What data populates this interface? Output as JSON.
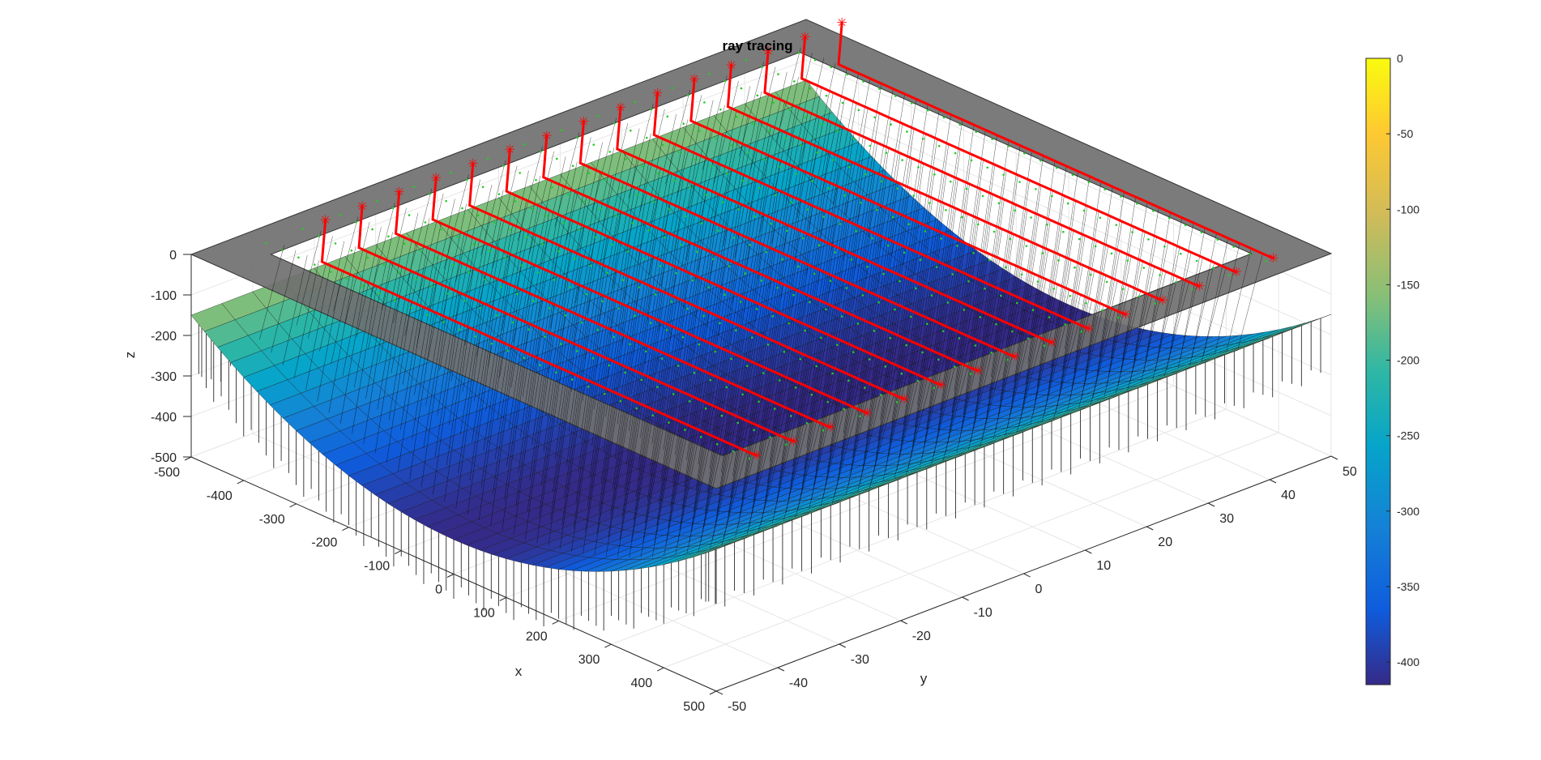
{
  "chart_data": {
    "type": "surface3d",
    "title": "ray tracing",
    "xlabel": "x",
    "ylabel": "y",
    "zlabel": "z",
    "xlim": [
      -500,
      500
    ],
    "ylim": [
      -50,
      50
    ],
    "zlim": [
      -500,
      0
    ],
    "x_ticks": [
      "-500",
      "-400",
      "-300",
      "-200",
      "-100",
      "0",
      "100",
      "200",
      "300",
      "400",
      "500"
    ],
    "y_ticks": [
      "-50",
      "-40",
      "-30",
      "-20",
      "-10",
      "0",
      "10",
      "20",
      "30",
      "40",
      "50"
    ],
    "z_ticks": [
      "0",
      "-100",
      "-200",
      "-300",
      "-400",
      "-500"
    ],
    "surface": {
      "description_of_shape": "parabolic trough, depth varies along x",
      "z_min": -415,
      "z_max": -150,
      "vertex_x": 0
    },
    "colorbar": {
      "colormap": "parula",
      "range": [
        -415,
        0
      ],
      "ticks": [
        "0",
        "-50",
        "-100",
        "-150",
        "-200",
        "-250",
        "-300",
        "-350",
        "-400"
      ]
    },
    "series": [
      {
        "name": "",
        "kind": "ray_endpoints",
        "marker": "asterisk",
        "color": "#ff0000",
        "z": 0
      },
      {
        "name": "",
        "kind": "reference_curve",
        "marker": "dot",
        "color": "#22cc22",
        "z": 0
      },
      {
        "name": "",
        "kind": "vertical_rays",
        "color": "#000000"
      }
    ],
    "ray_rows_y": [
      -40,
      -34,
      -28,
      -22,
      -16,
      -10,
      -4,
      2,
      8,
      14,
      20,
      26,
      32,
      38,
      44
    ],
    "grid": true,
    "receiver_plane": {
      "z": 0,
      "color": "#707070"
    }
  }
}
